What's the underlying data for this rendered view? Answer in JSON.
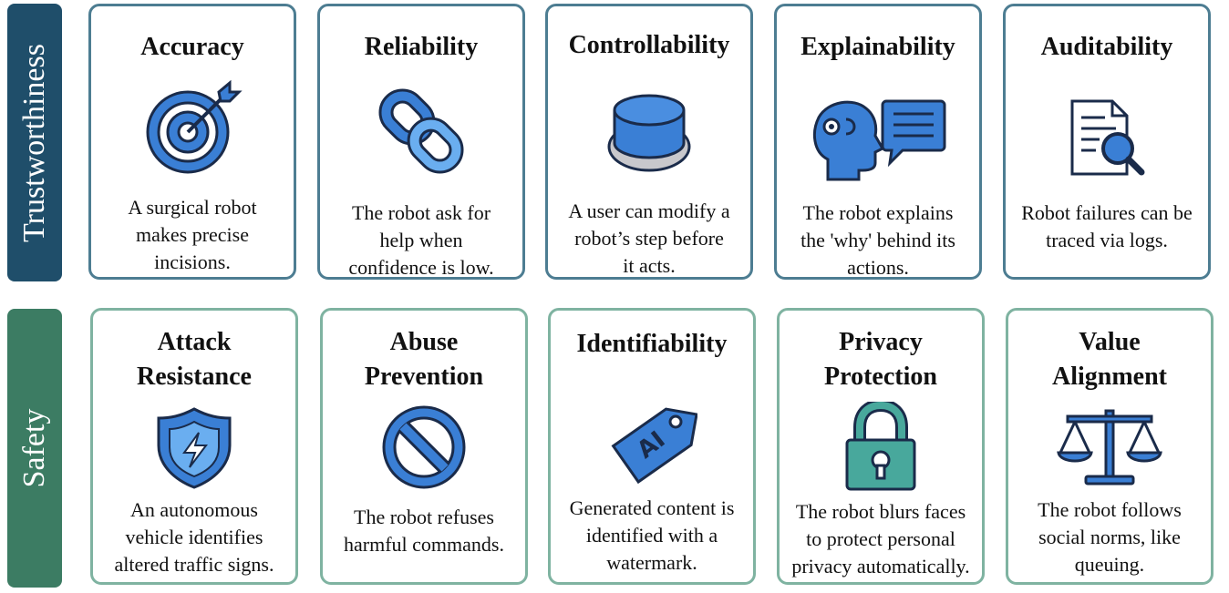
{
  "sections": [
    {
      "label": "Trustworthiness",
      "color": "#1f4e6a",
      "cards": [
        {
          "title": "Accuracy",
          "icon": "target-icon",
          "desc": [
            "A surgical robot",
            "makes precise",
            "incisions."
          ]
        },
        {
          "title": "Reliability",
          "icon": "chain-link-icon",
          "desc": [
            "The robot ask for",
            "help when",
            "confidence is low."
          ]
        },
        {
          "title": "Controllability",
          "icon": "push-button-icon",
          "desc": [
            "A user can modify a",
            "robot’s step before",
            "it acts."
          ]
        },
        {
          "title": "Explainability",
          "icon": "head-speech-bubble-icon",
          "desc": [
            "The robot explains",
            "the 'why' behind its",
            "actions."
          ]
        },
        {
          "title": "Auditability",
          "icon": "document-magnifier-icon",
          "desc": [
            "Robot failures can be",
            "traced via logs."
          ]
        }
      ]
    },
    {
      "label": "Safety",
      "color": "#3c7c63",
      "cards": [
        {
          "title": [
            "Attack",
            "Resistance"
          ],
          "icon": "shield-bolt-icon",
          "desc": [
            "An autonomous",
            "vehicle identifies",
            "altered traffic signs."
          ]
        },
        {
          "title": [
            "Abuse",
            "Prevention"
          ],
          "icon": "prohibited-icon",
          "desc": [
            "The robot refuses",
            "harmful commands."
          ]
        },
        {
          "title": "Identifiability",
          "icon": "ai-tag-icon",
          "desc": [
            "Generated content is",
            "identified with a",
            "watermark."
          ]
        },
        {
          "title": [
            "Privacy",
            "Protection"
          ],
          "icon": "padlock-icon",
          "desc": [
            "The robot blurs faces",
            "to protect personal",
            "privacy automatically."
          ]
        },
        {
          "title": [
            "Value",
            "Alignment"
          ],
          "icon": "balance-scale-icon",
          "desc": [
            "The robot follows",
            "social norms, like",
            "queuing."
          ]
        }
      ]
    }
  ]
}
